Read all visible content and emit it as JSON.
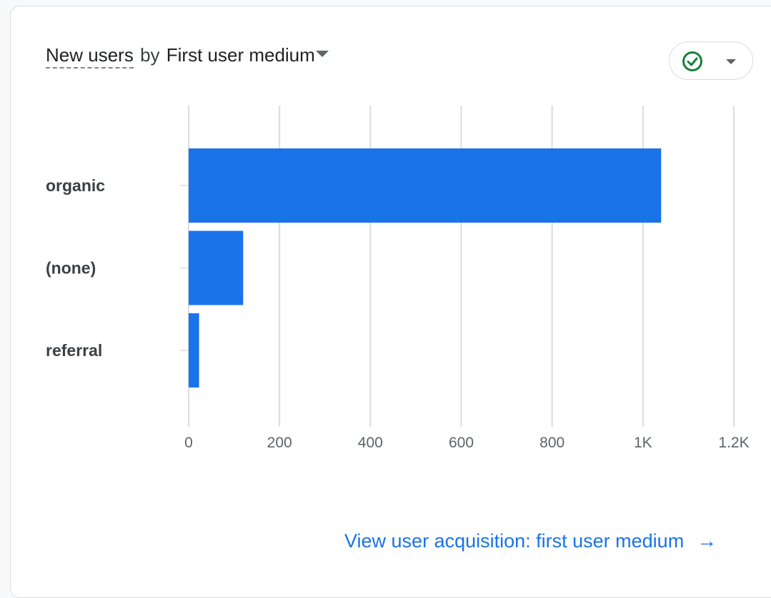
{
  "card": {
    "title_metric": "New users",
    "title_by": "by",
    "title_dimension": "First user medium",
    "status_icon": "check-circle-icon",
    "status_color": "#188038",
    "link_text": "View user acquisition: first user medium",
    "link_arrow": "→"
  },
  "colors": {
    "bar": "#1a73e8",
    "grid": "#dadce0",
    "link": "#1a73e8"
  },
  "chart_data": {
    "type": "bar",
    "orientation": "horizontal",
    "categories": [
      "organic",
      "(none)",
      "referral"
    ],
    "values": [
      1040,
      120,
      23
    ],
    "xlim": [
      0,
      1200
    ],
    "xticks": [
      0,
      200,
      400,
      600,
      800,
      1000,
      1200
    ],
    "xtick_labels": [
      "0",
      "200",
      "400",
      "600",
      "800",
      "1K",
      "1.2K"
    ],
    "grid": true
  }
}
